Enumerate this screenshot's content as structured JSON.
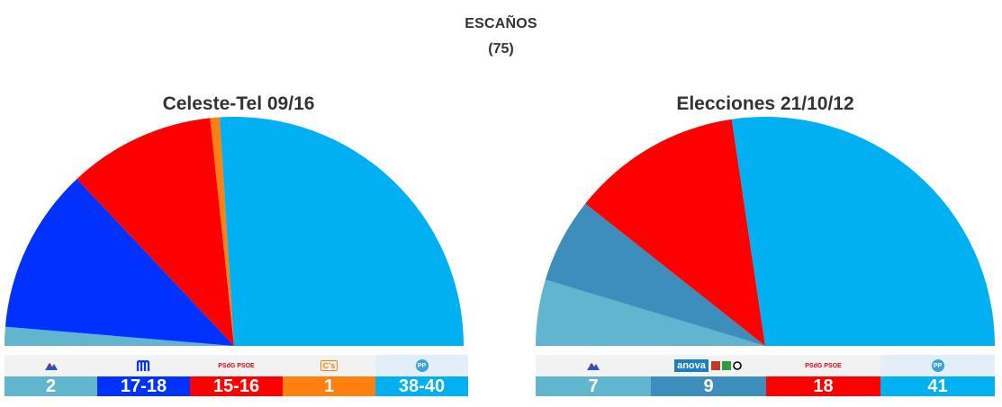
{
  "header": {
    "title": "ESCAÑOS",
    "subtitle": "(75)"
  },
  "chart_data": [
    {
      "type": "pie",
      "title": "Celeste-Tel 09/16",
      "total_seats": 75,
      "series": [
        {
          "label": "2",
          "value": 2,
          "color": "#62b5cf",
          "logo": "mountain-icon"
        },
        {
          "label": "17-18",
          "value": 17.5,
          "color": "#0031ff",
          "logo": "en-marea-icon"
        },
        {
          "label": "15-16",
          "value": 15.5,
          "color": "#ff0000",
          "logo": "psoe-icon"
        },
        {
          "label": "1",
          "value": 1,
          "color": "#ff7f10",
          "logo": "ciudadanos-icon"
        },
        {
          "label": "38-40",
          "value": 39,
          "color": "#00b0f0",
          "logo": "pp-icon"
        }
      ]
    },
    {
      "type": "pie",
      "title": "Elecciones 21/10/12",
      "total_seats": 75,
      "series": [
        {
          "label": "7",
          "value": 7,
          "color": "#62b5cf",
          "logo": "mountain-icon"
        },
        {
          "label": "9",
          "value": 9,
          "color": "#3d8ebd",
          "logo": "anova-icon"
        },
        {
          "label": "18",
          "value": 18,
          "color": "#ff0000",
          "logo": "psoe-icon"
        },
        {
          "label": "41",
          "value": 41,
          "color": "#00b0f0",
          "logo": "pp-icon"
        }
      ]
    }
  ],
  "logos": {
    "anova_text": "anova",
    "ci_text": "C's",
    "psoe_text": "PSdG PSOE",
    "pp_text": "PP"
  }
}
